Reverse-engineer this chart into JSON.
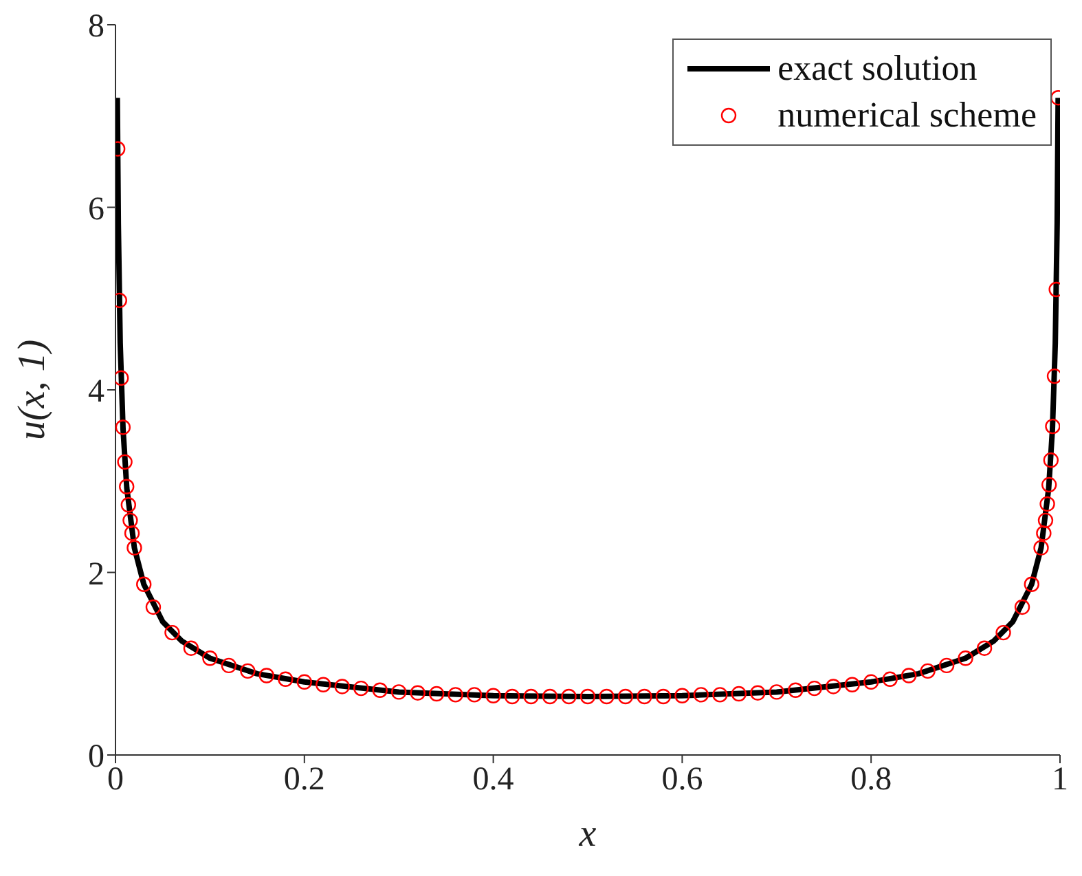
{
  "chart_data": {
    "type": "line",
    "xlabel": "x",
    "ylabel": "u(x, 1)",
    "xlim": [
      0,
      1
    ],
    "ylim": [
      0,
      8
    ],
    "xticks": [
      0,
      0.2,
      0.4,
      0.6,
      0.8,
      1
    ],
    "yticks": [
      0,
      2,
      4,
      6,
      8
    ],
    "grid": false,
    "legend": "top right",
    "series": [
      {
        "name": "exact solution",
        "color": "#000000",
        "line_style": "solid",
        "x": [
          0.00195,
          0.003,
          0.005,
          0.008,
          0.012,
          0.02,
          0.03,
          0.05,
          0.07,
          0.1,
          0.15,
          0.2,
          0.3,
          0.4,
          0.5,
          0.6,
          0.7,
          0.8,
          0.85,
          0.9,
          0.93,
          0.95,
          0.97,
          0.98,
          0.988,
          0.992,
          0.995,
          0.997,
          0.99805
        ],
        "values": [
          7.2,
          5.82,
          4.51,
          3.57,
          2.92,
          2.27,
          1.87,
          1.46,
          1.25,
          1.06,
          0.89,
          0.8,
          0.69,
          0.65,
          0.64,
          0.65,
          0.69,
          0.8,
          0.89,
          1.06,
          1.25,
          1.46,
          1.87,
          2.27,
          2.92,
          3.57,
          4.51,
          5.82,
          7.2
        ]
      },
      {
        "name": "numerical scheme",
        "type": "scatter",
        "color": "#ff0000",
        "marker": "circle",
        "x": [
          0.0023,
          0.0042,
          0.006,
          0.0079,
          0.0099,
          0.0118,
          0.0137,
          0.0156,
          0.0175,
          0.02,
          0.03,
          0.04,
          0.06,
          0.08,
          0.1,
          0.12,
          0.14,
          0.16,
          0.18,
          0.2,
          0.22,
          0.24,
          0.26,
          0.28,
          0.3,
          0.32,
          0.34,
          0.36,
          0.38,
          0.4,
          0.42,
          0.44,
          0.46,
          0.48,
          0.5,
          0.52,
          0.54,
          0.56,
          0.58,
          0.6,
          0.62,
          0.64,
          0.66,
          0.68,
          0.7,
          0.72,
          0.74,
          0.76,
          0.78,
          0.8,
          0.82,
          0.84,
          0.86,
          0.88,
          0.9,
          0.92,
          0.94,
          0.96,
          0.97,
          0.98,
          0.9828,
          0.9847,
          0.9866,
          0.9885,
          0.9904,
          0.9923,
          0.9942,
          0.9961,
          0.99805
        ],
        "values": [
          6.64,
          4.98,
          4.13,
          3.59,
          3.21,
          2.94,
          2.74,
          2.57,
          2.43,
          2.27,
          1.87,
          1.62,
          1.34,
          1.17,
          1.06,
          0.98,
          0.92,
          0.87,
          0.83,
          0.8,
          0.77,
          0.75,
          0.73,
          0.71,
          0.69,
          0.68,
          0.67,
          0.66,
          0.66,
          0.65,
          0.64,
          0.64,
          0.64,
          0.64,
          0.64,
          0.64,
          0.64,
          0.64,
          0.64,
          0.65,
          0.66,
          0.66,
          0.67,
          0.68,
          0.69,
          0.71,
          0.73,
          0.75,
          0.77,
          0.8,
          0.83,
          0.87,
          0.92,
          0.98,
          1.06,
          1.17,
          1.34,
          1.62,
          1.87,
          2.27,
          2.43,
          2.57,
          2.75,
          2.96,
          3.23,
          3.6,
          4.15,
          5.1,
          7.2
        ]
      }
    ]
  }
}
